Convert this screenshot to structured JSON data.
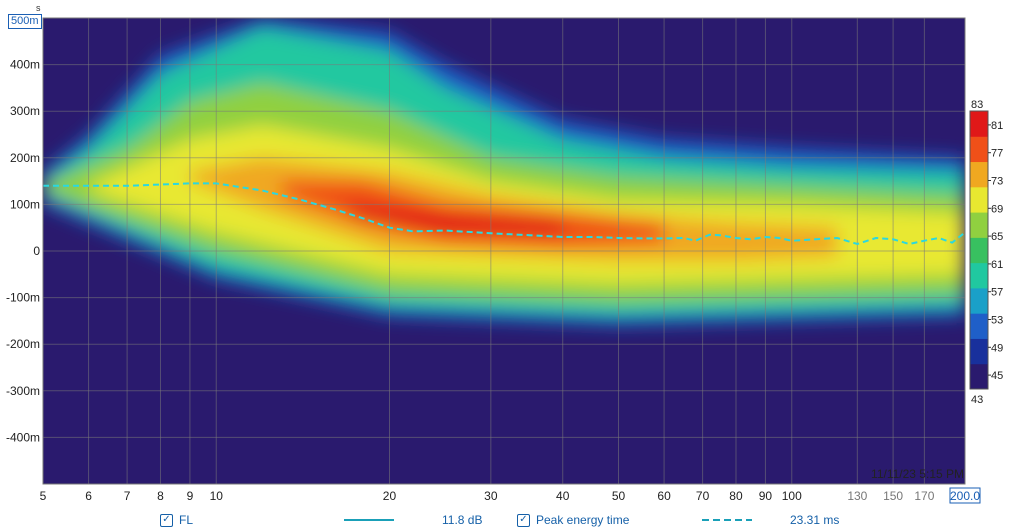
{
  "chart_data": {
    "type": "heatmap",
    "title": "",
    "xlabel": "",
    "ylabel": "",
    "x_scale": "log",
    "xlim": [
      5,
      200
    ],
    "ylim": [
      -0.5,
      0.5
    ],
    "x_ticks": [
      5,
      6,
      7,
      8,
      9,
      10,
      20,
      30,
      40,
      50,
      60,
      70,
      80,
      90,
      100,
      130,
      150,
      170,
      200
    ],
    "x_tick_labels": [
      "5",
      "6",
      "7",
      "8",
      "9",
      "10",
      "20",
      "30",
      "40",
      "50",
      "60",
      "70",
      "80",
      "90",
      "100",
      "130",
      "150",
      "170",
      "200.0"
    ],
    "y_ticks": [
      0.4,
      0.3,
      0.2,
      0.1,
      0,
      -0.1,
      -0.2,
      -0.3,
      -0.4
    ],
    "y_tick_labels": [
      "400m",
      "300m",
      "200m",
      "100m",
      "0",
      "-100m",
      "-200m",
      "-300m",
      "-400m"
    ],
    "y_top_label": "500m",
    "y_top_small": "s",
    "colorbar": {
      "min": 43,
      "max": 83,
      "ticks": [
        81,
        77,
        73,
        69,
        65,
        61,
        57,
        53,
        49,
        45
      ],
      "colors": [
        "#2a1a6e",
        "#18309c",
        "#1f5fc8",
        "#1aa0c8",
        "#20c8a0",
        "#38c060",
        "#90d040",
        "#e8e830",
        "#f0a820",
        "#f05018",
        "#e01818"
      ]
    },
    "timestamp": "11/11/23 5:15 PM",
    "series": [
      {
        "name": "Peak energy time",
        "style": "dashed",
        "color": "#2ad8e0",
        "x": [
          5,
          7,
          9,
          10,
          12,
          14,
          16,
          18,
          20,
          22,
          25,
          30,
          35,
          40,
          45,
          50,
          55,
          60,
          65,
          68,
          72,
          75,
          80,
          85,
          90,
          95,
          100,
          110,
          120,
          130,
          140,
          150,
          160,
          170,
          180,
          190,
          200
        ],
        "y": [
          0.14,
          0.14,
          0.145,
          0.145,
          0.13,
          0.11,
          0.09,
          0.07,
          0.05,
          0.042,
          0.044,
          0.038,
          0.034,
          0.03,
          0.03,
          0.028,
          0.027,
          0.027,
          0.028,
          0.022,
          0.035,
          0.034,
          0.028,
          0.025,
          0.03,
          0.028,
          0.022,
          0.025,
          0.028,
          0.015,
          0.028,
          0.025,
          0.015,
          0.022,
          0.028,
          0.018,
          0.04
        ]
      }
    ]
  },
  "legend": {
    "fl": {
      "label": "FL",
      "value": "11.8 dB",
      "checked": true,
      "color": "#1aa0b8"
    },
    "pet": {
      "label": "Peak energy time",
      "value": "23.31 ms",
      "checked": true,
      "color": "#1aa0b8"
    }
  }
}
